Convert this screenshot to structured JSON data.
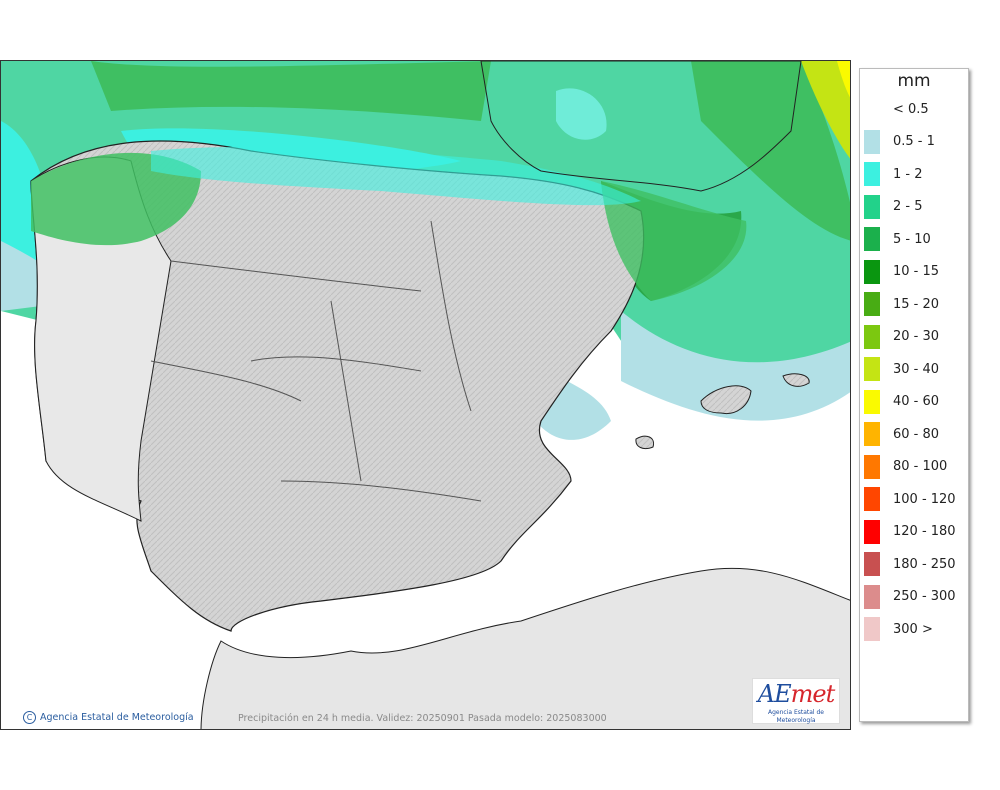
{
  "map": {
    "credit": "Agencia Estatal de Meteorología",
    "caption": "Precipitación en 24 h media. Validez: 20250901 Pasada modelo: 2025083000",
    "logo": {
      "brand_a": "AE",
      "brand_b": "met",
      "subtitle": "Agencia Estatal de Meteorología"
    }
  },
  "legend": {
    "title": "mm",
    "classes": [
      {
        "label": "< 0.5",
        "color": "#ffffff"
      },
      {
        "label": "0.5 - 1",
        "color": "#b2e0e6"
      },
      {
        "label": "1 - 2",
        "color": "#3cf0e0"
      },
      {
        "label": "2 - 5",
        "color": "#22d28a"
      },
      {
        "label": "5 - 10",
        "color": "#1bb04c"
      },
      {
        "label": "10 - 15",
        "color": "#0a9610"
      },
      {
        "label": "15 - 20",
        "color": "#48ac14"
      },
      {
        "label": "20 - 30",
        "color": "#7cc810"
      },
      {
        "label": "30 - 40",
        "color": "#c4e414"
      },
      {
        "label": "40 - 60",
        "color": "#fafa00"
      },
      {
        "label": "60 - 80",
        "color": "#ffb400"
      },
      {
        "label": "80 - 100",
        "color": "#ff7800"
      },
      {
        "label": "100 - 120",
        "color": "#ff4600"
      },
      {
        "label": "120 - 180",
        "color": "#ff0000"
      },
      {
        "label": "180 - 250",
        "color": "#c85050"
      },
      {
        "label": "250 - 300",
        "color": "#dc8c8c"
      },
      {
        "label": "300 >",
        "color": "#f0c8c8"
      }
    ]
  }
}
